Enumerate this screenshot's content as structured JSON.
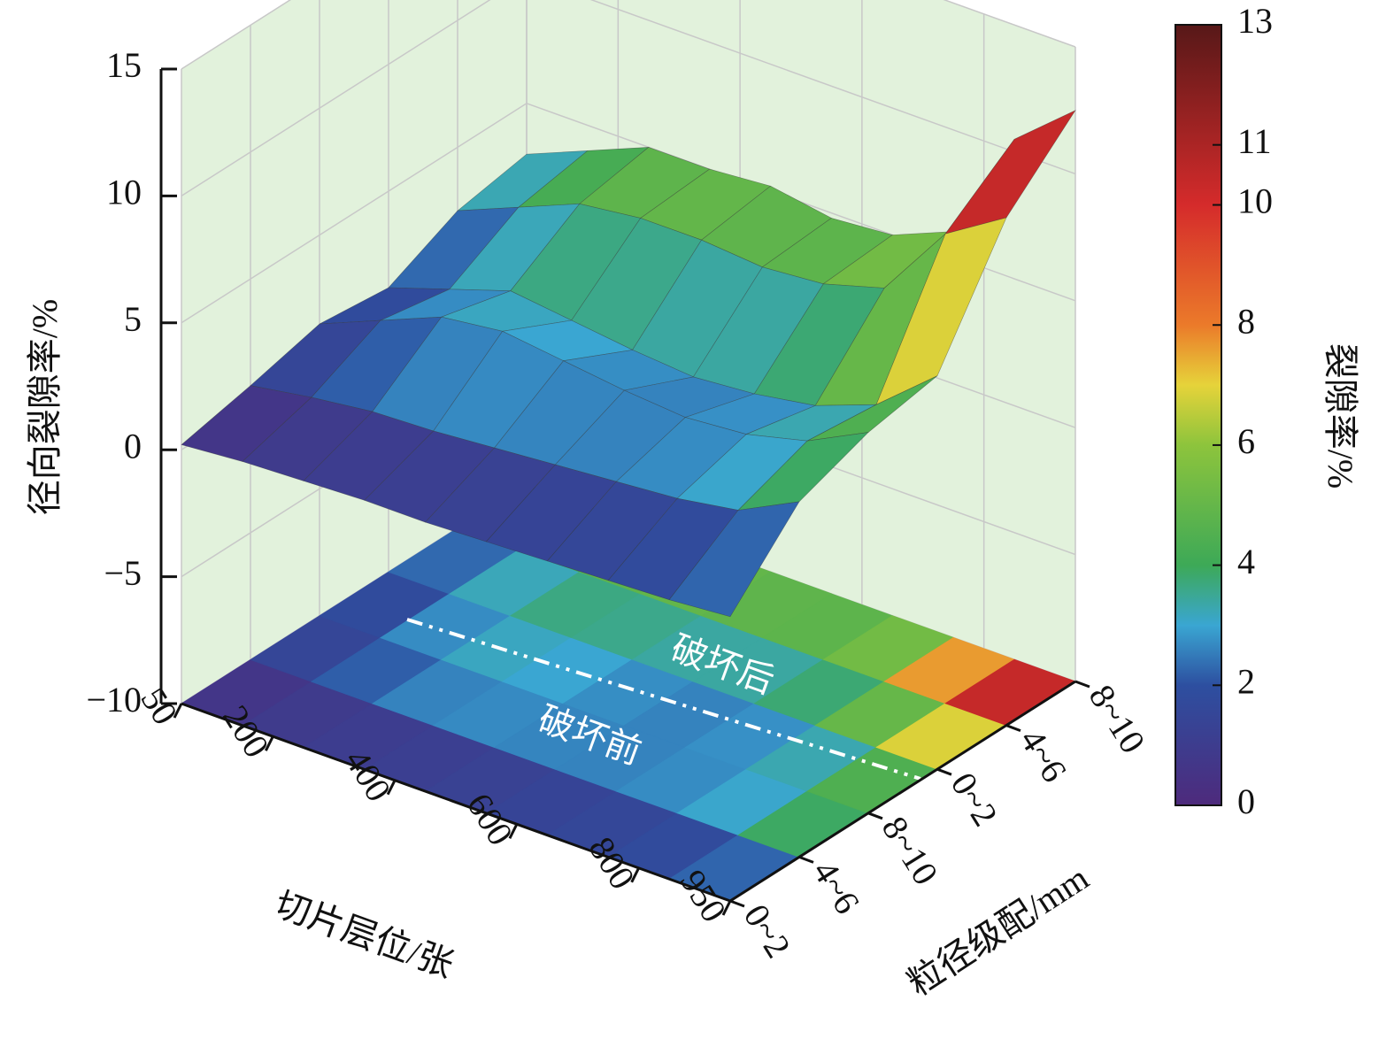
{
  "chart_data": {
    "type": "surface3d",
    "x_label": "切片层位/张",
    "y_label": "粒径级配/mm",
    "z_label": "径向裂隙率/%",
    "x": [
      50,
      150,
      250,
      350,
      450,
      550,
      650,
      750,
      850,
      950
    ],
    "xlim": [
      50,
      950
    ],
    "xticks": [
      50,
      200,
      400,
      600,
      800,
      950
    ],
    "y_categories": [
      "0~2",
      "4~6",
      "8~10",
      "0~2",
      "4~6",
      "8~10"
    ],
    "zlim": [
      -10,
      15
    ],
    "zticks": [
      {
        "value": -10,
        "label": "−10"
      },
      {
        "value": -5,
        "label": "−5"
      },
      0,
      5,
      10,
      15
    ],
    "z": [
      [
        0.2,
        0.4,
        0.5,
        0.6,
        0.6,
        0.7,
        0.8,
        0.9,
        1.0,
        1.2
      ],
      [
        0.8,
        1.2,
        1.5,
        1.6,
        1.8,
        2.0,
        2.2,
        2.4,
        2.8,
        4.0
      ],
      [
        1.5,
        2.5,
        3.5,
        3.8,
        3.5,
        3.2,
        3.0,
        3.2,
        3.8,
        5.0
      ],
      [
        1.2,
        2.0,
        2.8,
        2.5,
        2.2,
        2.0,
        2.2,
        2.6,
        3.5,
        5.5
      ],
      [
        2.5,
        3.5,
        4.5,
        4.8,
        4.8,
        4.6,
        4.8,
        5.5,
        8.5,
        10.0
      ],
      [
        3.0,
        4.0,
        5.0,
        5.0,
        5.2,
        4.8,
        5.0,
        6.0,
        10.5,
        12.5
      ]
    ],
    "colorbar": {
      "title": "裂隙率/%",
      "lim": [
        0,
        13
      ],
      "ticks": [
        0,
        2,
        4,
        6,
        8,
        10,
        11,
        13
      ]
    },
    "colormap": [
      {
        "value": 0,
        "color": "#4e2a7c"
      },
      {
        "value": 2,
        "color": "#2d4fa0"
      },
      {
        "value": 3,
        "color": "#3aa6d2"
      },
      {
        "value": 4,
        "color": "#3da957"
      },
      {
        "value": 6,
        "color": "#8dc43c"
      },
      {
        "value": 7,
        "color": "#e6d33a"
      },
      {
        "value": 8,
        "color": "#eb7a2a"
      },
      {
        "value": 10,
        "color": "#d52b2b"
      },
      {
        "value": 13,
        "color": "#571818"
      }
    ],
    "wall_color": "#e2f2dc",
    "grid": true,
    "annotations": [
      "破坏前",
      "破坏后"
    ]
  }
}
